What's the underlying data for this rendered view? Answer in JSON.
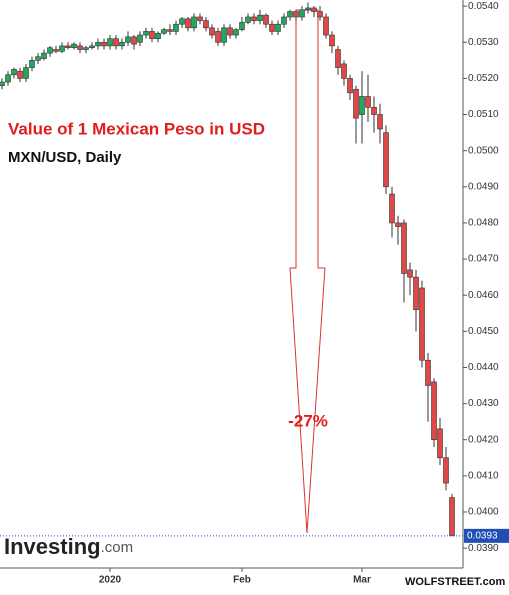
{
  "chart_data": {
    "type": "candlestick",
    "title": "Value of 1 Mexican Peso in USD",
    "subtitle": "MXN/USD, Daily",
    "annotation": "-27%",
    "logo": "Investing",
    "logo_suffix": ".com",
    "credit": "WOLFSTREET.com",
    "up_color": "#26a65b",
    "down_color": "#e04848",
    "categories": [
      null,
      null,
      null,
      null,
      null,
      null,
      null,
      null,
      null,
      null,
      null,
      null,
      null,
      null,
      null,
      null,
      null,
      null,
      "2020",
      null,
      null,
      null,
      null,
      null,
      null,
      null,
      null,
      null,
      null,
      null,
      null,
      null,
      null,
      null,
      null,
      null,
      null,
      null,
      null,
      null,
      "Feb",
      null,
      null,
      null,
      null,
      null,
      null,
      null,
      null,
      null,
      null,
      null,
      null,
      null,
      null,
      null,
      null,
      null,
      null,
      null,
      "Mar",
      null,
      null,
      null,
      null,
      null,
      null,
      null,
      null,
      null,
      null,
      null,
      null,
      null,
      null,
      null
    ],
    "ohlc": [
      [
        0.0518,
        0.052,
        0.0517,
        0.0519
      ],
      [
        0.0519,
        0.0522,
        0.0518,
        0.0521
      ],
      [
        0.0521,
        0.0523,
        0.052,
        0.05225
      ],
      [
        0.0522,
        0.0523,
        0.0519,
        0.052
      ],
      [
        0.052,
        0.0524,
        0.0519,
        0.0523
      ],
      [
        0.0523,
        0.0526,
        0.0522,
        0.0525
      ],
      [
        0.0525,
        0.0527,
        0.0524,
        0.0526
      ],
      [
        0.05255,
        0.0528,
        0.0525,
        0.0527
      ],
      [
        0.0527,
        0.0529,
        0.0526,
        0.05285
      ],
      [
        0.0528,
        0.0529,
        0.0527,
        0.05275
      ],
      [
        0.05275,
        0.053,
        0.0527,
        0.0529
      ],
      [
        0.0529,
        0.053,
        0.0528,
        0.05285
      ],
      [
        0.05285,
        0.053,
        0.0528,
        0.05295
      ],
      [
        0.0529,
        0.053,
        0.0527,
        0.0528
      ],
      [
        0.0528,
        0.0529,
        0.0527,
        0.05285
      ],
      [
        0.05285,
        0.053,
        0.0528,
        0.0529
      ],
      [
        0.0529,
        0.0531,
        0.0528,
        0.053
      ],
      [
        0.053,
        0.0531,
        0.0528,
        0.0529
      ],
      [
        0.0529,
        0.0532,
        0.0528,
        0.0531
      ],
      [
        0.0531,
        0.0532,
        0.0528,
        0.0529
      ],
      [
        0.0529,
        0.0531,
        0.0528,
        0.053
      ],
      [
        0.053,
        0.0533,
        0.0529,
        0.05315
      ],
      [
        0.05315,
        0.0532,
        0.0528,
        0.05295
      ],
      [
        0.053,
        0.0533,
        0.0529,
        0.0532
      ],
      [
        0.0532,
        0.0534,
        0.0531,
        0.0533
      ],
      [
        0.0533,
        0.0534,
        0.053,
        0.0531
      ],
      [
        0.0531,
        0.0533,
        0.053,
        0.05325
      ],
      [
        0.05325,
        0.0534,
        0.0532,
        0.05335
      ],
      [
        0.05335,
        0.0535,
        0.0532,
        0.0533
      ],
      [
        0.0533,
        0.0536,
        0.0532,
        0.0535
      ],
      [
        0.0535,
        0.0537,
        0.0534,
        0.05365
      ],
      [
        0.05365,
        0.0537,
        0.0533,
        0.0534
      ],
      [
        0.0534,
        0.0538,
        0.0533,
        0.0537
      ],
      [
        0.0537,
        0.0538,
        0.0535,
        0.0536
      ],
      [
        0.0536,
        0.0537,
        0.0533,
        0.0534
      ],
      [
        0.0534,
        0.0535,
        0.0531,
        0.0532
      ],
      [
        0.0533,
        0.0534,
        0.0529,
        0.053
      ],
      [
        0.053,
        0.0535,
        0.0529,
        0.0534
      ],
      [
        0.0534,
        0.0535,
        0.0531,
        0.0532
      ],
      [
        0.0532,
        0.0534,
        0.0531,
        0.05335
      ],
      [
        0.05335,
        0.0537,
        0.0533,
        0.05355
      ],
      [
        0.05355,
        0.0538,
        0.0535,
        0.0537
      ],
      [
        0.0537,
        0.0538,
        0.0535,
        0.0536
      ],
      [
        0.0536,
        0.0539,
        0.0535,
        0.05375
      ],
      [
        0.05375,
        0.0538,
        0.0534,
        0.0535
      ],
      [
        0.0535,
        0.0536,
        0.0532,
        0.0533
      ],
      [
        0.0533,
        0.0536,
        0.0532,
        0.0535
      ],
      [
        0.0535,
        0.0538,
        0.0534,
        0.0537
      ],
      [
        0.0537,
        0.0539,
        0.0536,
        0.05385
      ],
      [
        0.05385,
        0.0539,
        0.0536,
        0.0537
      ],
      [
        0.0537,
        0.054,
        0.0536,
        0.0539
      ],
      [
        0.0539,
        0.0541,
        0.0538,
        0.05395
      ],
      [
        0.05395,
        0.054,
        0.0537,
        0.05385
      ],
      [
        0.05385,
        0.054,
        0.0536,
        0.0537
      ],
      [
        0.0537,
        0.0538,
        0.0531,
        0.0532
      ],
      [
        0.0532,
        0.0533,
        0.0527,
        0.0529
      ],
      [
        0.0528,
        0.0529,
        0.0521,
        0.0523
      ],
      [
        0.0524,
        0.0525,
        0.0518,
        0.052
      ],
      [
        0.052,
        0.0521,
        0.0514,
        0.0516
      ],
      [
        0.0517,
        0.0518,
        0.0502,
        0.0509
      ],
      [
        0.051,
        0.0522,
        0.0502,
        0.0515
      ],
      [
        0.0515,
        0.0521,
        0.0508,
        0.0512
      ],
      [
        0.0512,
        0.0515,
        0.0505,
        0.051
      ],
      [
        0.051,
        0.0513,
        0.0502,
        0.0506
      ],
      [
        0.0505,
        0.0507,
        0.0488,
        0.049
      ],
      [
        0.0488,
        0.049,
        0.0476,
        0.048
      ],
      [
        0.048,
        0.0482,
        0.0474,
        0.0479
      ],
      [
        0.048,
        0.0481,
        0.0458,
        0.0466
      ],
      [
        0.0467,
        0.0469,
        0.046,
        0.0465
      ],
      [
        0.0465,
        0.0467,
        0.045,
        0.0456
      ],
      [
        0.0462,
        0.0464,
        0.044,
        0.0442
      ],
      [
        0.0442,
        0.0444,
        0.0425,
        0.0435
      ],
      [
        0.0436,
        0.0437,
        0.0418,
        0.042
      ],
      [
        0.0423,
        0.0426,
        0.0413,
        0.0415
      ],
      [
        0.0415,
        0.0418,
        0.0406,
        0.0408
      ],
      [
        0.0404,
        0.0405,
        0.03934,
        0.03934
      ]
    ],
    "current_price": {
      "value": 0.03934,
      "label": "0.0393"
    },
    "current_color": "#1f4fb5",
    "ylim": [
      0.03845,
      0.05417
    ],
    "yticks": [
      {
        "value": 0.039,
        "label": "0.0390"
      },
      {
        "value": 0.04,
        "label": "0.0400"
      },
      {
        "value": 0.041,
        "label": "0.0410"
      },
      {
        "value": 0.042,
        "label": "0.0420"
      },
      {
        "value": 0.043,
        "label": "0.0430"
      },
      {
        "value": 0.044,
        "label": "0.0440"
      },
      {
        "value": 0.045,
        "label": "0.0450"
      },
      {
        "value": 0.046,
        "label": "0.0460"
      },
      {
        "value": 0.047,
        "label": "0.0470"
      },
      {
        "value": 0.048,
        "label": "0.0480"
      },
      {
        "value": 0.049,
        "label": "0.0490"
      },
      {
        "value": 0.05,
        "label": "0.0500"
      },
      {
        "value": 0.051,
        "label": "0.0510"
      },
      {
        "value": 0.052,
        "label": "0.0520"
      },
      {
        "value": 0.053,
        "label": "0.0530"
      },
      {
        "value": 0.054,
        "label": "0.0540"
      }
    ],
    "grid": false
  }
}
